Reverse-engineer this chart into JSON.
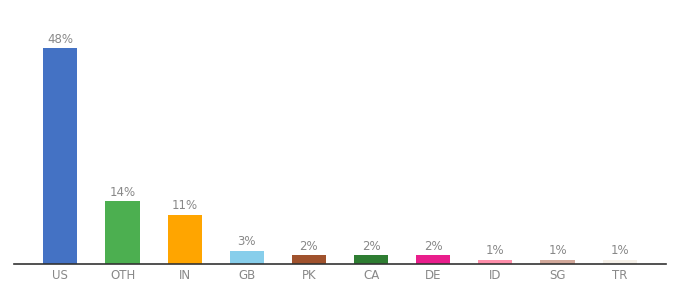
{
  "categories": [
    "US",
    "OTH",
    "IN",
    "GB",
    "PK",
    "CA",
    "DE",
    "ID",
    "SG",
    "TR"
  ],
  "values": [
    48,
    14,
    11,
    3,
    2,
    2,
    2,
    1,
    1,
    1
  ],
  "bar_colors": [
    "#4472C4",
    "#4CAF50",
    "#FFA500",
    "#87CEEB",
    "#A0522D",
    "#2E7D32",
    "#E91E8C",
    "#FF8FAB",
    "#D2A89A",
    "#F5F0E8"
  ],
  "labels": [
    "48%",
    "14%",
    "11%",
    "3%",
    "2%",
    "2%",
    "2%",
    "1%",
    "1%",
    "1%"
  ],
  "ylim": [
    0,
    54
  ],
  "label_fontsize": 8.5,
  "tick_fontsize": 8.5,
  "background_color": "#ffffff",
  "bar_width": 0.55,
  "label_color": "#888888"
}
